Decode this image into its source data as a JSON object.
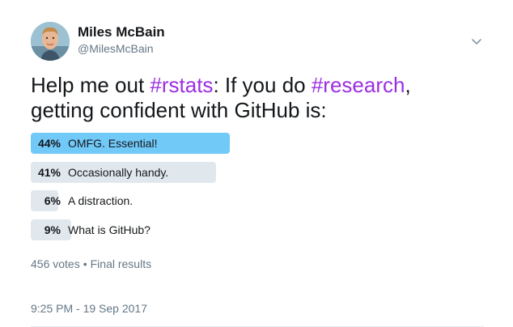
{
  "author": {
    "name": "Miles McBain",
    "handle": "@MilesMcBain",
    "avatar_icon": "user-avatar-photo"
  },
  "tweet": {
    "text_parts": [
      "Help me out ",
      "#rstats",
      ": If you do ",
      "#research",
      ",",
      "getting confident with GitHub is:"
    ]
  },
  "poll": {
    "options": [
      {
        "percent": "44%",
        "label": "OMFG. Essential!",
        "value": 44,
        "winner": true
      },
      {
        "percent": "41%",
        "label": "Occasionally handy.",
        "value": 41,
        "winner": false
      },
      {
        "percent": "6%",
        "label": "A distraction.",
        "value": 6,
        "winner": false
      },
      {
        "percent": "9%",
        "label": "What is GitHub?",
        "value": 9,
        "winner": false
      }
    ],
    "votes": "456 votes",
    "separator": "•",
    "status": "Final results"
  },
  "timestamp": "9:25 PM - 19 Sep 2017",
  "colors": {
    "hashtag": "#9b2fe0",
    "winner_bar": "#71c9f8",
    "other_bar": "#e1e8ed",
    "secondary_text": "#657786"
  },
  "icons": {
    "menu": "chevron-down-icon"
  }
}
